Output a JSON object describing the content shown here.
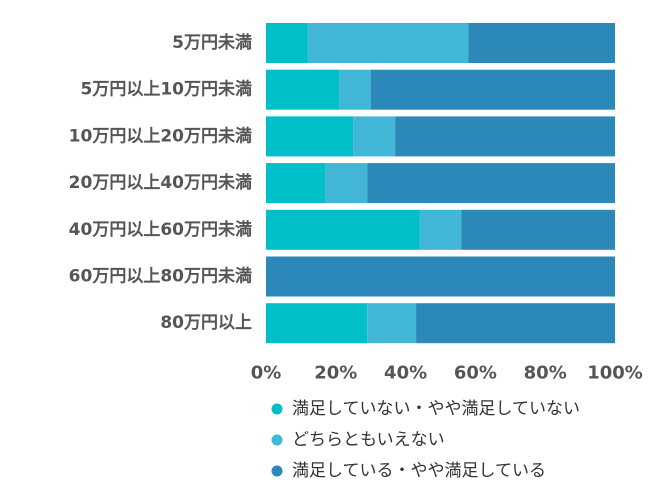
{
  "chart_data": {
    "type": "bar",
    "orientation": "horizontal",
    "stacked": true,
    "percent_stacked": true,
    "categories": [
      "5万円未満",
      "5万円以上10万円未満",
      "10万円以上20万円未満",
      "20万円以上40万円未満",
      "40万円以上60万円未満",
      "60万円以上80万円未満",
      "80万円以上"
    ],
    "series": [
      {
        "name": "満足していない・やや満足していない",
        "color": "#00BFC8",
        "values": [
          12,
          21,
          25,
          17,
          44,
          0,
          29
        ]
      },
      {
        "name": "どちらともいえない",
        "color": "#41B6D6",
        "values": [
          46,
          9,
          12,
          12,
          12,
          0,
          14
        ]
      },
      {
        "name": "満足している・やや満足している",
        "color": "#2C88B8",
        "values": [
          42,
          70,
          63,
          71,
          44,
          100,
          57
        ]
      }
    ],
    "x_ticks": [
      "0%",
      "20%",
      "40%",
      "60%",
      "80%",
      "100%"
    ],
    "xlim": [
      0,
      100
    ],
    "grid": false,
    "legend_position": "bottom"
  }
}
